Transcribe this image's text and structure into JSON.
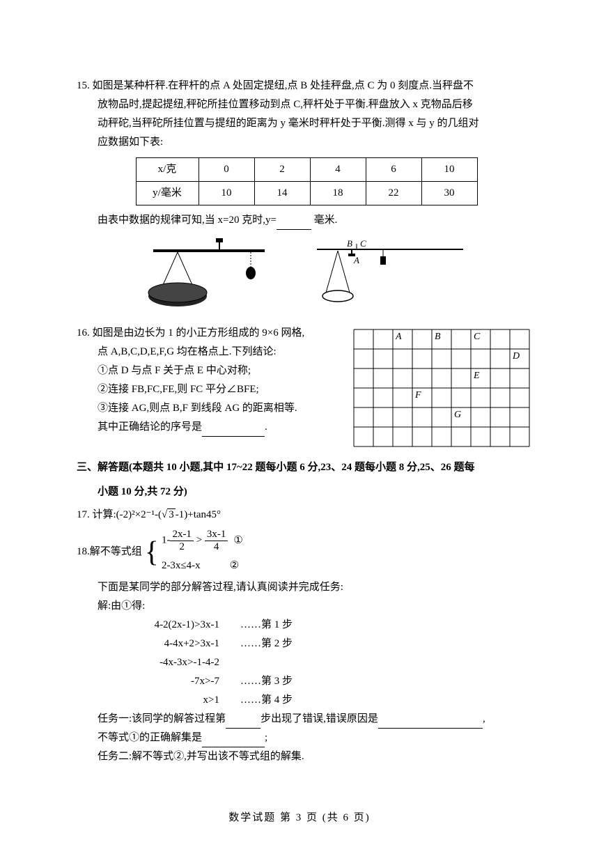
{
  "q15": {
    "num": "15.",
    "line1": "如图是某种杆秤.在秤杆的点 A 处固定提纽,点 B 处挂秤盘,点 C 为 0 刻度点.当秤盘不",
    "line2": "放物品时,提起提纽,秤砣所挂位置移动到点 C,秤杆处于平衡.秤盘放入 x 克物品后移",
    "line3": "动秤砣,当秤砣所挂位置与提纽的距离为 y 毫米时秤杆处于平衡.测得 x 与 y 的几组对",
    "line4": "应数据如下表:",
    "table": {
      "header": [
        "x/克",
        "0",
        "2",
        "4",
        "6",
        "10"
      ],
      "row": [
        "y/毫米",
        "10",
        "14",
        "18",
        "22",
        "30"
      ]
    },
    "line5_a": "由表中数据的规律可知,当 x=20 克时,y=",
    "line5_b": "毫米.",
    "labels": {
      "B": "B",
      "C": "C",
      "A": "A"
    }
  },
  "q16": {
    "num": "16.",
    "line1": "如图是由边长为 1 的小正方形组成的 9×6 网格,",
    "line2": "点 A,B,C,D,E,F,G 均在格点上.下列结论:",
    "item1": "①点 D 与点 F 关于点 E 中心对称;",
    "item2": "②连接 FB,FC,FE,则 FC 平分∠BFE;",
    "item3": "③连接 AG,则点 B,F 到线段 AG 的距离相等.",
    "line6": "其中正确结论的序号是",
    "grid": {
      "cols": 9,
      "rows": 6,
      "cell": 28,
      "points": {
        "A": [
          2,
          0
        ],
        "B": [
          4,
          0
        ],
        "C": [
          6,
          0
        ],
        "D": [
          8,
          1
        ],
        "E": [
          6,
          2
        ],
        "F": [
          3,
          3
        ],
        "G": [
          5,
          4
        ]
      }
    }
  },
  "section3": {
    "title": "三、解答题(本题共 10 小题,其中 17~22 题每小题 6 分,23、24 题每小题 8 分,25、26 题每",
    "title2": "小题 10 分,共 72 分)"
  },
  "q17": {
    "num": "17.",
    "text": "计算:(-2)²×2⁻¹-(",
    "sqrt": "3",
    "text2": "-1)+tan45°"
  },
  "q18": {
    "num": "18.",
    "label": "解不等式组",
    "ineq1_lhs": "1-",
    "ineq1_frac1_num": "2x-1",
    "ineq1_frac1_den": "2",
    "ineq1_mid": ">",
    "ineq1_frac2_num": "3x-1",
    "ineq1_frac2_den": "4",
    "circ1": "①",
    "ineq2": "2-3x≤4-x",
    "circ2": "②",
    "line_intro": "下面是某同学的部分解答过程,请认真阅读并完成任务:",
    "sol_label": "解:由①得:",
    "steps": [
      {
        "expr": "4-2(2x-1)>3x-1",
        "label": "……第 1 步"
      },
      {
        "expr": "4-4x+2>3x-1",
        "label": "……第 2 步"
      },
      {
        "expr": "-4x-3x>-1-4-2",
        "label": ""
      },
      {
        "expr": "-7x>-7",
        "label": "……第 3 步"
      },
      {
        "expr": "x>1",
        "label": "……第 4 步"
      }
    ],
    "task1_a": "任务一:该同学的解答过程第",
    "task1_b": "步出现了错误,错误原因是",
    "task1_c": ",",
    "task1_d": "不等式①的正确解集是",
    "task1_e": ";",
    "task2": "任务二:解不等式②,并写出该不等式组的解集."
  },
  "footer": "数学试题  第 3 页  (共 6 页)"
}
